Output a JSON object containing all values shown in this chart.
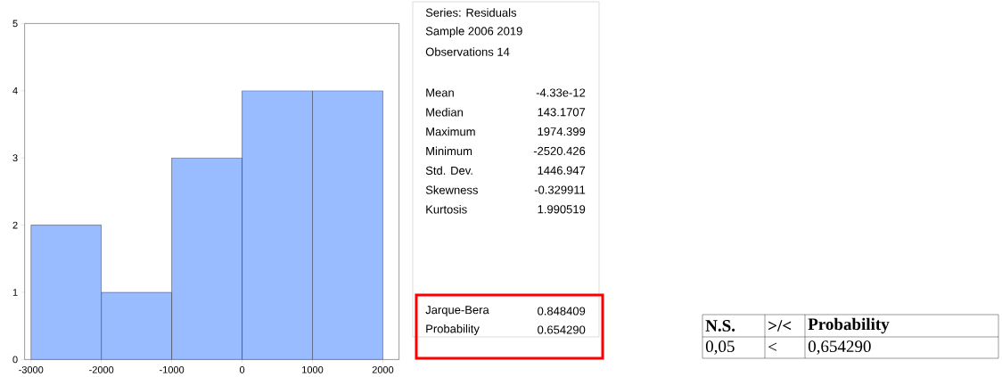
{
  "chart_data": [
    {
      "type": "histogram",
      "bins": [
        -3000,
        -2000,
        -1000,
        0,
        1000,
        2000
      ],
      "values": [
        2,
        1,
        3,
        4,
        4
      ],
      "color": "#99bbff",
      "xlim": [
        -3090,
        2230
      ],
      "ylim": [
        0,
        5
      ],
      "xticks": [
        -3000,
        -2000,
        -1000,
        0,
        1000,
        2000
      ],
      "yticks": [
        0,
        1,
        2,
        3,
        4,
        5
      ]
    },
    {
      "type": "other",
      "annotations": [
        "Series: Residuals",
        "Sample 2006 2019",
        "Observations 14",
        "Mean",
        "-4.33e-12",
        "Median",
        "143.1707",
        "Maximum",
        "1974.399",
        "Minimum",
        "-2520.426",
        "Std. Dev.",
        "1446.947",
        "Skewness",
        "-0.329911",
        "Kurtosis",
        "1.990519",
        "Jarque-Bera",
        "0.848409",
        "Probability",
        "0.654290"
      ]
    },
    {
      "type": "other",
      "annotations": [
        "N.S.",
        ">/<",
        "Probability",
        "0,05",
        "<",
        "0,654290"
      ]
    }
  ]
}
